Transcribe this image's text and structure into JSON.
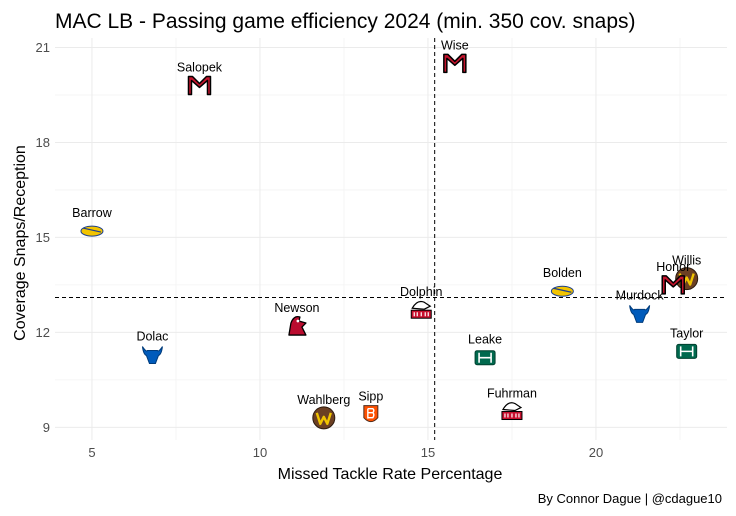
{
  "chart_data": {
    "type": "scatter",
    "title": "MAC LB - Passing game efficiency 2024 (min. 350 cov. snaps)",
    "xlabel": "Missed Tackle Rate Percentage",
    "ylabel": "Coverage Snaps/Reception",
    "caption": "By Connor Dague | @cdague10",
    "xlim": [
      3.9,
      23.9
    ],
    "ylim": [
      8.6,
      21.3
    ],
    "xticks": [
      5,
      10,
      15,
      20
    ],
    "yticks": [
      9,
      12,
      15,
      18,
      21
    ],
    "grid": true,
    "ref_lines": {
      "x": 15.2,
      "y": 13.1
    },
    "points": [
      {
        "label": "Wise",
        "x": 15.8,
        "y": 20.5,
        "logo": "miami-oh",
        "logo_color": "#c3142d"
      },
      {
        "label": "Salopek",
        "x": 8.2,
        "y": 19.8,
        "logo": "miami-oh",
        "logo_color": "#c3142d"
      },
      {
        "label": "Barrow",
        "x": 5.0,
        "y": 15.2,
        "logo": "toledo",
        "logo_color": "#f2c400"
      },
      {
        "label": "Bolden",
        "x": 19.0,
        "y": 13.3,
        "logo": "toledo",
        "logo_color": "#f2c400"
      },
      {
        "label": "Willis",
        "x": 22.7,
        "y": 13.7,
        "logo": "western-michigan",
        "logo_color": "#6c4023"
      },
      {
        "label": "Honor",
        "x": 22.3,
        "y": 13.5,
        "logo": "miami-oh",
        "logo_color": "#c3142d"
      },
      {
        "label": "Murdock",
        "x": 21.3,
        "y": 12.6,
        "logo": "buffalo",
        "logo_color": "#005bbb"
      },
      {
        "label": "Dolphin",
        "x": 14.8,
        "y": 12.7,
        "logo": "northern-illinois",
        "logo_color": "#c8102e"
      },
      {
        "label": "Newson",
        "x": 11.1,
        "y": 12.2,
        "logo": "ball-state",
        "logo_color": "#ba0c2f"
      },
      {
        "label": "Dolac",
        "x": 6.8,
        "y": 11.3,
        "logo": "buffalo",
        "logo_color": "#005bbb"
      },
      {
        "label": "Leake",
        "x": 16.7,
        "y": 11.2,
        "logo": "ohio",
        "logo_color": "#00694e"
      },
      {
        "label": "Taylor",
        "x": 22.7,
        "y": 11.4,
        "logo": "ohio",
        "logo_color": "#00694e"
      },
      {
        "label": "Fuhrman",
        "x": 17.5,
        "y": 9.5,
        "logo": "northern-illinois",
        "logo_color": "#c8102e"
      },
      {
        "label": "Sipp",
        "x": 13.3,
        "y": 9.4,
        "logo": "bowling-green",
        "logo_color": "#fe5000"
      },
      {
        "label": "Wahlberg",
        "x": 11.9,
        "y": 9.3,
        "logo": "western-michigan",
        "logo_color": "#6c4023"
      }
    ]
  }
}
